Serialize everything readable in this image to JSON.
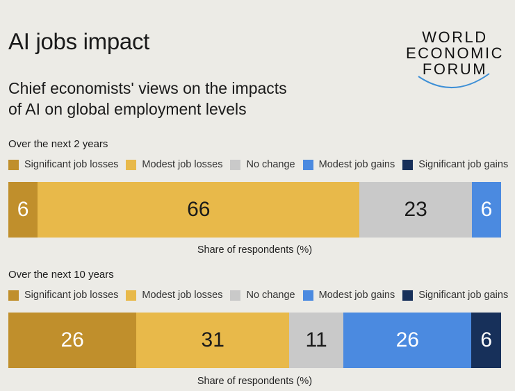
{
  "header": {
    "title": "AI jobs impact",
    "subtitle_line1": "Chief economists' views on the impacts",
    "subtitle_line2": "of AI on global employment levels"
  },
  "logo": {
    "line1": "WORLD",
    "line2": "ECONOMIC",
    "line3": "FORUM",
    "accent_color": "#3d8fd6"
  },
  "chart_data": [
    {
      "type": "bar",
      "orientation": "horizontal-stacked-100",
      "title": "Over the next 2 years",
      "xlabel": "Share of respondents (%)",
      "legend": [
        "Significant job losses",
        "Modest job losses",
        "No change",
        "Modest job gains",
        "Significant job gains"
      ],
      "legend_placement": "top",
      "series": [
        {
          "name": "Significant job losses",
          "value": 6,
          "label": "6",
          "color": "#c08f2c",
          "text_color": "#ffffff"
        },
        {
          "name": "Modest job losses",
          "value": 66,
          "label": "66",
          "color": "#e8b94a",
          "text_color": "#1a1a1a"
        },
        {
          "name": "No change",
          "value": 23,
          "label": "23",
          "color": "#c9c9c9",
          "text_color": "#1a1a1a"
        },
        {
          "name": "Modest job gains",
          "value": 6,
          "label": "6",
          "color": "#4b8ae0",
          "text_color": "#ffffff"
        },
        {
          "name": "Significant job gains",
          "value": 0,
          "label": "",
          "color": "#17305a",
          "text_color": "#ffffff"
        }
      ]
    },
    {
      "type": "bar",
      "orientation": "horizontal-stacked-100",
      "title": "Over the next 10 years",
      "xlabel": "Share of respondents (%)",
      "legend": [
        "Significant job losses",
        "Modest job losses",
        "No change",
        "Modest job gains",
        "Significant job gains"
      ],
      "legend_placement": "top",
      "series": [
        {
          "name": "Significant job losses",
          "value": 26,
          "label": "26",
          "color": "#c08f2c",
          "text_color": "#ffffff"
        },
        {
          "name": "Modest job losses",
          "value": 31,
          "label": "31",
          "color": "#e8b94a",
          "text_color": "#1a1a1a"
        },
        {
          "name": "No change",
          "value": 11,
          "label": "11",
          "color": "#c9c9c9",
          "text_color": "#1a1a1a"
        },
        {
          "name": "Modest job gains",
          "value": 26,
          "label": "26",
          "color": "#4b8ae0",
          "text_color": "#ffffff"
        },
        {
          "name": "Significant job gains",
          "value": 6,
          "label": "6",
          "color": "#17305a",
          "text_color": "#ffffff"
        }
      ]
    }
  ]
}
